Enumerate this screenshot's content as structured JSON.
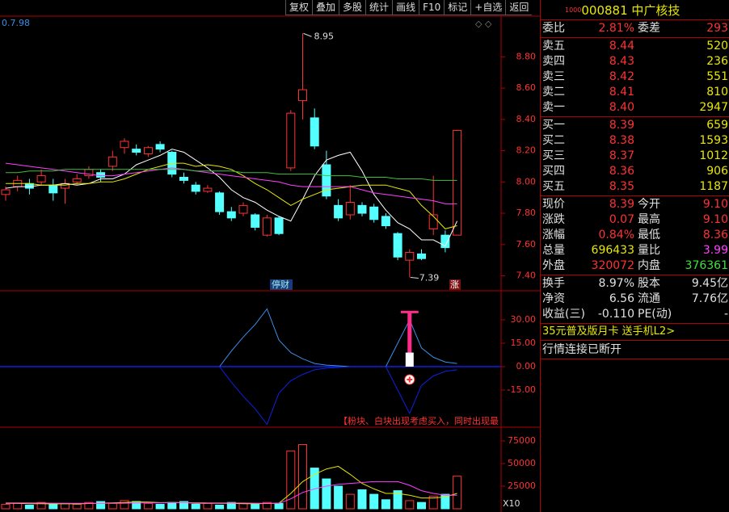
{
  "toolbar": [
    "复权",
    "叠加",
    "多股",
    "统计",
    "画线",
    "F10",
    "标记",
    "+自选",
    "返回"
  ],
  "price_chart": {
    "corner_label": "0.7.98",
    "ylim": [
      7.32,
      9.05
    ],
    "yticks": [
      {
        "value": 8.8,
        "label": "8.80"
      },
      {
        "value": 8.6,
        "label": "8.60"
      },
      {
        "value": 8.4,
        "label": "8.40"
      },
      {
        "value": 8.2,
        "label": "8.20"
      },
      {
        "value": 8.0,
        "label": "8.00"
      },
      {
        "value": 7.8,
        "label": "7.80"
      },
      {
        "value": 7.6,
        "label": "7.60"
      },
      {
        "value": 7.4,
        "label": "7.40"
      }
    ],
    "candles": {
      "open": [
        7.92,
        7.97,
        7.99,
        8.0,
        7.98,
        7.96,
        8.0,
        8.04,
        8.06,
        8.1,
        8.22,
        8.21,
        8.18,
        8.24,
        8.19,
        8.03,
        7.98,
        7.94,
        7.93,
        7.81,
        7.8,
        7.79,
        7.66,
        7.77,
        8.09,
        8.52,
        8.41,
        8.11,
        7.85,
        7.79,
        7.85,
        7.84,
        7.78,
        7.67,
        7.5,
        7.54,
        7.7,
        7.66,
        7.66
      ],
      "close": [
        7.95,
        8.01,
        7.96,
        8.04,
        7.93,
        7.99,
        8.02,
        8.08,
        8.03,
        8.16,
        8.26,
        8.19,
        8.22,
        8.21,
        8.05,
        8.01,
        7.94,
        7.96,
        7.81,
        7.77,
        7.85,
        7.71,
        7.77,
        7.67,
        8.44,
        8.59,
        8.23,
        7.91,
        7.77,
        7.87,
        7.8,
        7.76,
        7.72,
        7.52,
        7.55,
        7.51,
        7.79,
        7.58,
        8.33
      ],
      "high": [
        7.97,
        8.04,
        8.02,
        8.08,
        8.02,
        8.02,
        8.05,
        8.1,
        8.08,
        8.2,
        8.28,
        8.24,
        8.23,
        8.26,
        8.2,
        8.06,
        8.0,
        7.98,
        7.94,
        7.84,
        7.87,
        7.8,
        7.79,
        7.78,
        8.46,
        8.95,
        8.47,
        8.2,
        7.89,
        7.98,
        7.87,
        7.86,
        7.8,
        7.68,
        7.57,
        7.57,
        8.04,
        7.69,
        8.33
      ],
      "low": [
        7.88,
        7.94,
        7.92,
        7.98,
        7.88,
        7.86,
        7.98,
        8.02,
        8.0,
        8.07,
        8.18,
        8.17,
        8.16,
        8.19,
        8.03,
        7.99,
        7.92,
        7.93,
        7.79,
        7.75,
        7.78,
        7.69,
        7.65,
        7.66,
        8.07,
        8.4,
        8.21,
        7.89,
        7.75,
        7.76,
        7.78,
        7.74,
        7.7,
        7.5,
        7.39,
        7.5,
        7.66,
        7.55,
        7.66
      ]
    },
    "ma": [
      {
        "color": "#ffffff",
        "values": [
          7.96,
          7.97,
          7.97,
          7.98,
          7.98,
          7.99,
          7.98,
          7.99,
          8.02,
          8.02,
          8.05,
          8.11,
          8.14,
          8.17,
          8.21,
          8.19,
          8.14,
          8.09,
          8.03,
          7.95,
          7.9,
          7.87,
          7.82,
          7.78,
          7.75,
          7.89,
          8.04,
          8.14,
          8.17,
          8.19,
          8.07,
          7.92,
          7.82,
          7.74,
          7.7,
          7.63,
          7.63,
          7.59,
          7.75
        ]
      },
      {
        "color": "#e8e800",
        "values": [
          7.99,
          7.99,
          7.99,
          7.98,
          7.98,
          7.98,
          7.99,
          7.99,
          8.0,
          8.0,
          8.02,
          8.05,
          8.08,
          8.1,
          8.12,
          8.12,
          8.1,
          8.11,
          8.1,
          8.08,
          8.04,
          7.99,
          7.95,
          7.9,
          7.85,
          7.89,
          7.92,
          7.95,
          7.96,
          7.97,
          7.98,
          7.98,
          7.98,
          7.96,
          7.94,
          7.85,
          7.78,
          7.7,
          7.72
        ]
      },
      {
        "color": "#ff40ff",
        "values": [
          8.12,
          8.11,
          8.1,
          8.09,
          8.08,
          8.07,
          8.06,
          8.05,
          8.04,
          8.04,
          8.05,
          8.06,
          8.07,
          8.08,
          8.09,
          8.08,
          8.07,
          8.06,
          8.05,
          8.04,
          8.03,
          8.02,
          8.01,
          8.0,
          7.98,
          7.97,
          7.97,
          7.97,
          7.97,
          7.97,
          7.95,
          7.93,
          7.92,
          7.91,
          7.9,
          7.89,
          7.88,
          7.86,
          7.86
        ]
      },
      {
        "color": "#40c040",
        "values": [
          8.06,
          8.06,
          8.07,
          8.07,
          8.07,
          8.08,
          8.08,
          8.08,
          8.08,
          8.08,
          8.08,
          8.08,
          8.08,
          8.08,
          8.08,
          8.08,
          8.07,
          8.07,
          8.07,
          8.07,
          8.06,
          8.06,
          8.06,
          8.05,
          8.05,
          8.05,
          8.05,
          8.04,
          8.04,
          8.04,
          8.03,
          8.03,
          8.03,
          8.02,
          8.02,
          8.02,
          8.01,
          8.01,
          8.01
        ]
      }
    ],
    "high_label": "8.95",
    "low_label": "7.39",
    "badges": [
      "停财",
      "涨"
    ]
  },
  "indicator": {
    "ylim": [
      -38.3,
      47.6
    ],
    "yticks": [
      {
        "value": 30,
        "label": "30.00"
      },
      {
        "value": 15,
        "label": "15.00"
      },
      {
        "value": 0,
        "label": "0.00"
      },
      {
        "value": -15,
        "label": "-15.00"
      }
    ],
    "series": [
      {
        "color": "#3a8ee6",
        "values": [
          0,
          0,
          0,
          0,
          0,
          0,
          0,
          0,
          0,
          0,
          0,
          0,
          0,
          0,
          0,
          0,
          0,
          0,
          0,
          10,
          19,
          27,
          37,
          17,
          9,
          5,
          2,
          1,
          0.5,
          0,
          0,
          0,
          0,
          15,
          30,
          12,
          6,
          3,
          2
        ]
      },
      {
        "color": "#1020e0",
        "values": [
          0,
          0,
          0,
          0,
          0,
          0,
          0,
          0,
          0,
          0,
          0,
          0,
          0,
          0,
          0,
          0,
          0,
          0,
          0,
          -10,
          -19,
          -27,
          -37,
          -17,
          -9,
          -5,
          -2,
          -1,
          -0.5,
          0,
          0,
          0,
          0,
          -15,
          -30,
          -12,
          -6,
          -3,
          -2
        ]
      }
    ],
    "pink_block": 35,
    "white_block": 9,
    "caption": "【粉块、白块出现考虑买入，同时出现最"
  },
  "volume": {
    "ylim": [
      0,
      87500
    ],
    "yticks": [
      75000,
      50000,
      25000
    ],
    "values": [
      5000,
      6000,
      4000,
      7000,
      5000,
      6000,
      5000,
      7000,
      8000,
      6000,
      9000,
      8000,
      6000,
      5000,
      7000,
      8000,
      5000,
      6000,
      4000,
      7000,
      6000,
      5000,
      7000,
      6000,
      64000,
      71000,
      45000,
      33000,
      25000,
      16000,
      21000,
      16000,
      10000,
      20000,
      9000,
      7000,
      14000,
      16000,
      36000
    ],
    "ma": [
      {
        "color": "#e8e800",
        "values": [
          6000,
          6000,
          5600,
          5600,
          5400,
          5600,
          5400,
          5800,
          6200,
          6400,
          7000,
          7600,
          7400,
          6800,
          7000,
          6800,
          6200,
          6200,
          6000,
          6000,
          5600,
          5600,
          5800,
          6200,
          17000,
          30000,
          38000,
          44000,
          47000,
          38000,
          28000,
          22000,
          17000,
          17000,
          15000,
          12000,
          12000,
          13000,
          17000
        ]
      },
      {
        "color": "#ff40ff",
        "values": [
          6500,
          6500,
          6400,
          6300,
          6200,
          6100,
          6000,
          6000,
          6100,
          6100,
          6200,
          6400,
          6500,
          6600,
          6800,
          6900,
          6700,
          6500,
          6400,
          6300,
          6300,
          6200,
          6100,
          6000,
          11000,
          18000,
          22000,
          25000,
          27000,
          28000,
          29000,
          30000,
          30000,
          30000,
          26000,
          20000,
          17000,
          15000,
          15000
        ]
      }
    ],
    "label": "X10"
  },
  "quote": {
    "code_prefix": "1000",
    "code": "000881",
    "name": "中广核技",
    "sections": [
      [
        {
          "cells": [
            "委比",
            "2.81%",
            "委差",
            "293"
          ],
          "colors": [
            "#ff3232",
            "#ff3232"
          ]
        }
      ],
      [
        {
          "cells": [
            "卖五",
            "8.44",
            "520"
          ],
          "colors": [
            "#ff3232",
            "#e8e800"
          ]
        },
        {
          "cells": [
            "卖四",
            "8.43",
            "236"
          ],
          "colors": [
            "#ff3232",
            "#e8e800"
          ]
        },
        {
          "cells": [
            "卖三",
            "8.42",
            "551"
          ],
          "colors": [
            "#ff3232",
            "#e8e800"
          ]
        },
        {
          "cells": [
            "卖二",
            "8.41",
            "810"
          ],
          "colors": [
            "#ff3232",
            "#e8e800"
          ]
        },
        {
          "cells": [
            "卖一",
            "8.40",
            "2947"
          ],
          "colors": [
            "#ff3232",
            "#e8e800"
          ]
        }
      ],
      [
        {
          "cells": [
            "买一",
            "8.39",
            "659"
          ],
          "colors": [
            "#ff3232",
            "#e8e800"
          ]
        },
        {
          "cells": [
            "买二",
            "8.38",
            "1593"
          ],
          "colors": [
            "#ff3232",
            "#e8e800"
          ]
        },
        {
          "cells": [
            "买三",
            "8.37",
            "1012"
          ],
          "colors": [
            "#ff3232",
            "#e8e800"
          ]
        },
        {
          "cells": [
            "买四",
            "8.36",
            "906"
          ],
          "colors": [
            "#ff3232",
            "#e8e800"
          ]
        },
        {
          "cells": [
            "买五",
            "8.35",
            "1187"
          ],
          "colors": [
            "#ff3232",
            "#e8e800"
          ]
        }
      ],
      [
        {
          "cells": [
            "现价",
            "8.39",
            "今开",
            "9.10"
          ],
          "colors": [
            "#ff3232",
            "#ff3232"
          ]
        },
        {
          "cells": [
            "涨跌",
            "0.07",
            "最高",
            "9.10"
          ],
          "colors": [
            "#ff3232",
            "#ff3232"
          ]
        },
        {
          "cells": [
            "涨幅",
            "0.84%",
            "最低",
            "8.36"
          ],
          "colors": [
            "#ff3232",
            "#ff3232"
          ]
        },
        {
          "cells": [
            "总量",
            "696433",
            "量比",
            "3.99"
          ],
          "colors": [
            "#e8e800",
            "#ff40ff"
          ]
        },
        {
          "cells": [
            "外盘",
            "320072",
            "内盘",
            "376361"
          ],
          "colors": [
            "#ff3232",
            "#40e040"
          ]
        }
      ],
      [
        {
          "cells": [
            "换手",
            "8.97%",
            "股本",
            "9.45亿"
          ],
          "colors": [
            "#e0e0e0",
            "#e0e0e0"
          ]
        },
        {
          "cells": [
            "净资",
            "6.56",
            "流通",
            "7.76亿"
          ],
          "colors": [
            "#e0e0e0",
            "#e0e0e0"
          ]
        },
        {
          "cells": [
            "收益(三)",
            "-0.110",
            "PE(动)",
            "-"
          ],
          "colors": [
            "#e0e0e0",
            "#e0e0e0"
          ]
        }
      ]
    ],
    "promo": "35元普及版月卡 送手机L2>",
    "status": "行情连接已断开"
  }
}
